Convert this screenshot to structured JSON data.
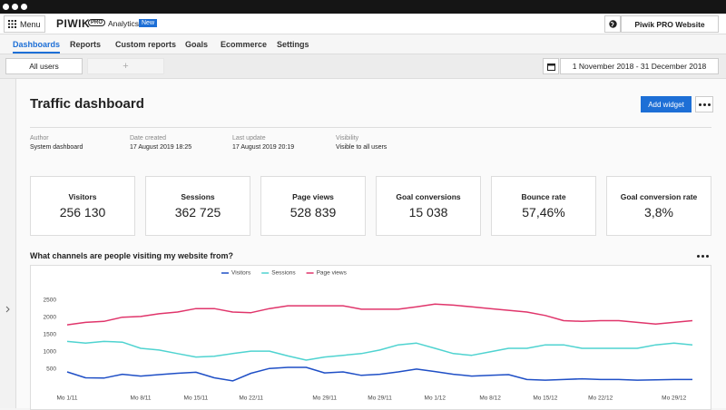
{
  "header": {
    "menu": "Menu",
    "logo": "PIWIK",
    "logo_badge": "PRO",
    "product": "Analytics",
    "new_badge": "New",
    "website": "Piwik PRO Website"
  },
  "nav": {
    "tabs": [
      "Dashboards",
      "Reports",
      "Custom reports",
      "Goals",
      "Ecommerce",
      "Settings"
    ],
    "active": 0
  },
  "toolbar": {
    "tabs": [
      "All users",
      "+"
    ],
    "date_range": "1 November 2018 - 31 December 2018"
  },
  "dashboard": {
    "title": "Traffic dashboard",
    "add_widget": "Add widget",
    "meta": [
      {
        "label": "Author",
        "value": "System dashboard"
      },
      {
        "label": "Date created",
        "value": "17 August 2019 18:25"
      },
      {
        "label": "Last update",
        "value": "17 August 2019 20:19"
      },
      {
        "label": "Visibility",
        "value": "Visible to all users"
      }
    ]
  },
  "kpis": [
    {
      "label": "Visitors",
      "value": "256 130"
    },
    {
      "label": "Sessions",
      "value": "362 725"
    },
    {
      "label": "Page views",
      "value": "528 839"
    },
    {
      "label": "Goal conversions",
      "value": "15 038"
    },
    {
      "label": "Bounce rate",
      "value": "57,46%"
    },
    {
      "label": "Goal conversion rate",
      "value": "3,8%"
    }
  ],
  "widget_title": "What channels are people visiting my website from?",
  "chart_data": {
    "type": "line",
    "categories": [
      "Mo 1/11",
      null,
      null,
      null,
      "Mo 8/11",
      null,
      null,
      "Mo 15/11",
      null,
      null,
      "Mo 22/11",
      null,
      null,
      null,
      "Mo 29/11",
      null,
      null,
      "Mo 29/11",
      null,
      null,
      "Mo 1/12",
      null,
      null,
      "Mo 8/12",
      null,
      null,
      "Mo 15/12",
      null,
      null,
      "Mo 22/12",
      null,
      null,
      null,
      "Mo 29/12",
      null
    ],
    "series": [
      {
        "name": "Visitors",
        "color": "#1f4fc6",
        "values": [
          420,
          250,
          240,
          350,
          300,
          340,
          380,
          410,
          250,
          160,
          380,
          520,
          550,
          550,
          390,
          420,
          320,
          350,
          420,
          500,
          430,
          350,
          300,
          320,
          340,
          200,
          180,
          200,
          220,
          200,
          200,
          180,
          190,
          200,
          200
        ]
      },
      {
        "name": "Sessions",
        "color": "#4fd3d0",
        "values": [
          1300,
          1250,
          1300,
          1280,
          1100,
          1050,
          950,
          850,
          870,
          950,
          1020,
          1020,
          880,
          760,
          850,
          900,
          950,
          1050,
          1200,
          1250,
          1100,
          950,
          900,
          1000,
          1100,
          1100,
          1200,
          1200,
          1100,
          1100,
          1100,
          1100,
          1200,
          1250,
          1200
        ]
      },
      {
        "name": "Page views",
        "color": "#e0356b",
        "values": [
          1780,
          1850,
          1880,
          2000,
          2020,
          2100,
          2150,
          2250,
          2250,
          2150,
          2130,
          2250,
          2330,
          2330,
          2330,
          2330,
          2230,
          2230,
          2230,
          2300,
          2380,
          2350,
          2300,
          2250,
          2200,
          2150,
          2050,
          1900,
          1880,
          1900,
          1900,
          1850,
          1800,
          1850,
          1900
        ]
      }
    ],
    "ylim": [
      0,
      2700
    ],
    "yticks": [
      500,
      1000,
      1500,
      2000,
      2500
    ],
    "grid": false
  }
}
